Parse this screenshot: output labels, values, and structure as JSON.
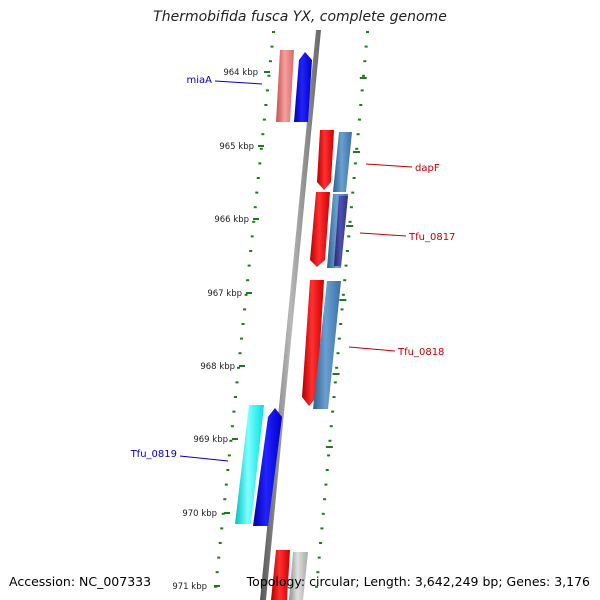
{
  "title": "Thermobifida fusca YX, complete genome",
  "footer": {
    "accession": "Accession: NC_007333",
    "summary": "Topology: circular; Length: 3,642,249 bp; Genes: 3,176"
  },
  "colors": {
    "backbone": "#7a7a7a",
    "tick": "#1f7a1f",
    "forward_label": "#0000c0",
    "reverse_label": "#c00000"
  },
  "scale": {
    "unit": "kbp",
    "labels": [
      "964 kbp",
      "965 kbp",
      "966 kbp",
      "967 kbp",
      "968 kbp",
      "969 kbp",
      "970 kbp",
      "971 kbp"
    ]
  },
  "genes": [
    {
      "name": "miaA",
      "strand": "forward",
      "label": "miaA",
      "color_a": "#f08080",
      "color_b": "#0000ff"
    },
    {
      "name": "dapF",
      "strand": "reverse",
      "label": "dapF",
      "color_a": "#ff0000",
      "color_b": "#4a86c0"
    },
    {
      "name": "Tfu_0817",
      "strand": "reverse",
      "label": "Tfu_0817",
      "color_a": "#ff0000",
      "color_b": "#3c3c9a"
    },
    {
      "name": "Tfu_0818",
      "strand": "reverse",
      "label": "Tfu_0818",
      "color_a": "#ff0000",
      "color_b": "#4a86c0"
    },
    {
      "name": "Tfu_0819",
      "strand": "forward",
      "label": "Tfu_0819",
      "color_a": "#00ffff",
      "color_b": "#0000ff"
    },
    {
      "name": "unlabeled",
      "strand": "reverse",
      "label": "",
      "color_a": "#ff0000",
      "color_b": "#b0b0b0"
    }
  ]
}
